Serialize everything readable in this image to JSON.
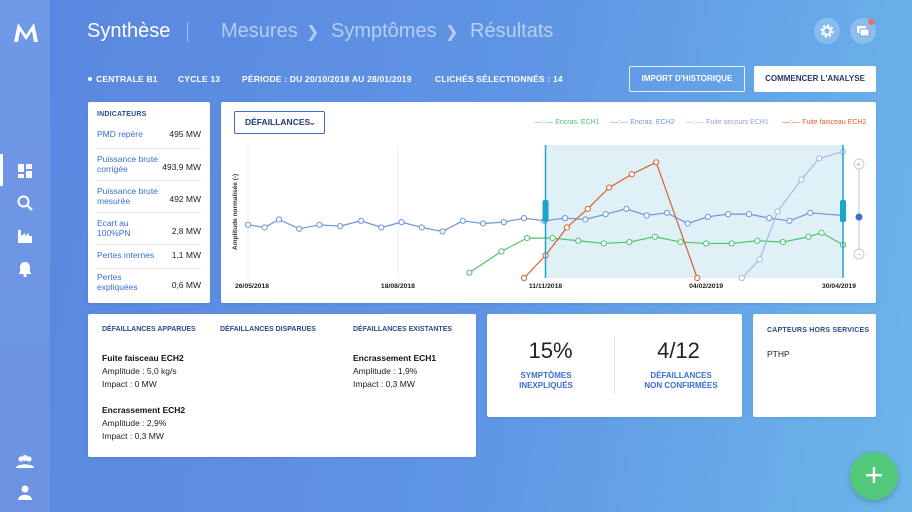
{
  "header": {
    "title": "Synthèse",
    "breadcrumbs": [
      "Mesures",
      "Symptômes",
      "Résultats"
    ]
  },
  "info_bar": {
    "centrale": "CENTRALE B1",
    "cycle": "CYCLE 13",
    "periode": "PÉRIODE  : DU 20/10/2018 AU 28/01/2019",
    "cliches": "CLICHÉS SÉLECTIONNÉS : 14",
    "import_button": "IMPORT D'HISTORIQUE",
    "start_button": "COMMENCER L'ANALYSE"
  },
  "indicators": {
    "title": "INDICATEURS",
    "rows": [
      {
        "label": "PMD repère",
        "value": "495 MW"
      },
      {
        "label": "Puissance brute corrigée",
        "value": "493,9 MW"
      },
      {
        "label": "Puissance brute mesurée",
        "value": "492 MW"
      },
      {
        "label": "Ecart au 100%PN",
        "value": "2,8 MW"
      },
      {
        "label": "Pertes internes",
        "value": "1,1 MW"
      },
      {
        "label": "Pertes expliquées",
        "value": "0,6 MW"
      }
    ]
  },
  "chart_card": {
    "dropdown_label": "DÉFAILLANCES",
    "legend": [
      {
        "name": "Encras. ECH1",
        "color": "#4cc46a"
      },
      {
        "name": "Encras. ECH2",
        "color": "#6c94dd"
      },
      {
        "name": "Fuite secours ECH1",
        "color": "#a7b8e8"
      },
      {
        "name": "Fuite faisceau ECH2",
        "color": "#d9602f"
      }
    ]
  },
  "chart_data": {
    "type": "line",
    "ylabel": "Amplitude normalisée (-)",
    "xlabel": "",
    "x_tick_labels": [
      "26/05/2018",
      "18/08/2018",
      "11/11/2018",
      "04/02/2019",
      "30/04/2019"
    ],
    "ylim": [
      0,
      1
    ],
    "selection_window": {
      "start": "11/11/2018",
      "end": "30/04/2019"
    },
    "series": [
      {
        "name": "Encras. ECH1",
        "color": "#4cc46a",
        "x": [
          0.372,
          0.426,
          0.469,
          0.512,
          0.555,
          0.598,
          0.641,
          0.684,
          0.727,
          0.77,
          0.813,
          0.856,
          0.899,
          0.942,
          0.964,
          1.0
        ],
        "y": [
          0.04,
          0.2,
          0.3,
          0.3,
          0.28,
          0.26,
          0.27,
          0.31,
          0.27,
          0.26,
          0.26,
          0.28,
          0.27,
          0.31,
          0.34,
          0.25
        ]
      },
      {
        "name": "Encras. ECH2",
        "color": "#6c94dd",
        "x": [
          0.0,
          0.028,
          0.052,
          0.086,
          0.12,
          0.155,
          0.19,
          0.224,
          0.258,
          0.292,
          0.327,
          0.361,
          0.395,
          0.43,
          0.464,
          0.498,
          0.533,
          0.567,
          0.601,
          0.636,
          0.67,
          0.704,
          0.739,
          0.773,
          0.807,
          0.842,
          0.876,
          0.91,
          0.945,
          1.0
        ],
        "y": [
          0.4,
          0.38,
          0.44,
          0.37,
          0.4,
          0.39,
          0.43,
          0.38,
          0.42,
          0.38,
          0.35,
          0.43,
          0.41,
          0.42,
          0.45,
          0.43,
          0.45,
          0.44,
          0.48,
          0.52,
          0.47,
          0.49,
          0.41,
          0.46,
          0.48,
          0.48,
          0.45,
          0.43,
          0.49,
          0.47
        ]
      },
      {
        "name": "Fuite secours ECH1",
        "color": "#a7b8e8",
        "x": [
          0.83,
          0.86,
          0.89,
          0.93,
          0.96,
          1.0
        ],
        "y": [
          0.0,
          0.14,
          0.5,
          0.74,
          0.9,
          0.95
        ]
      },
      {
        "name": "Fuite faisceau ECH2",
        "color": "#d9602f",
        "x": [
          0.464,
          0.5,
          0.536,
          0.571,
          0.607,
          0.645,
          0.686,
          0.755
        ],
        "y": [
          0.0,
          0.17,
          0.38,
          0.52,
          0.68,
          0.78,
          0.87,
          0.0
        ]
      }
    ]
  },
  "failures": {
    "appeared": {
      "title": "DÉFAILLANCES APPARUES",
      "items": [
        {
          "name": "Fuite faisceau ECH2",
          "amplitude": "Amplitude : 5,0 kg/s",
          "impact": "Impact : 0 MW"
        },
        {
          "name": "Encrassement ECH2",
          "amplitude": "Amplitude : 2,9%",
          "impact": "Impact : 0,3 MW"
        }
      ]
    },
    "disappeared": {
      "title": "DÉFAILLANCES DISPARUES"
    },
    "existing": {
      "title": "DÉFAILLANCES EXISTANTES",
      "items": [
        {
          "name": "Encrassement ECH1",
          "amplitude": "Amplitude : 1,9%",
          "impact": "Impact : 0,3 MW"
        }
      ]
    }
  },
  "kpis": [
    {
      "value": "15%",
      "label_line1": "SYMPTÔMES",
      "label_line2": "INEXPLIQUÉS"
    },
    {
      "value": "4/12",
      "label_line1": "DÉFAILLANCES",
      "label_line2": "NON CONFIRMÉES"
    }
  ],
  "sensors": {
    "title": "CAPTEURS HORS SERVICES",
    "items": [
      "PTHP"
    ]
  },
  "colors": {
    "accent": "#3a6fd0",
    "fab": "#52c97a",
    "notification": "#f26b5b"
  },
  "icons": {
    "logo": "brand-logo",
    "sidebar": [
      "dashboard-icon",
      "search-icon",
      "factory-icon",
      "bell-icon",
      "users-icon",
      "user-icon"
    ],
    "header": [
      "settings-icon",
      "chat-icon"
    ],
    "fab": "plus-icon"
  }
}
